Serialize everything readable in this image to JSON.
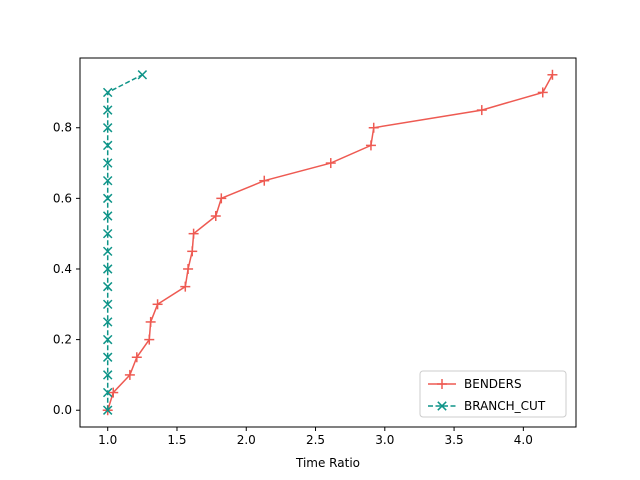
{
  "chart_data": {
    "type": "line",
    "title": "",
    "xlabel": "Time Ratio",
    "ylabel": "",
    "xlim": [
      0.8,
      4.38
    ],
    "ylim": [
      -0.0475,
      0.9975
    ],
    "x_ticks": [
      1.0,
      1.5,
      2.0,
      2.5,
      3.0,
      3.5,
      4.0
    ],
    "x_tick_labels": [
      "1.0",
      "1.5",
      "2.0",
      "2.5",
      "3.0",
      "3.5",
      "4.0"
    ],
    "y_ticks": [
      0.0,
      0.2,
      0.4,
      0.6,
      0.8
    ],
    "y_tick_labels": [
      "0.0",
      "0.2",
      "0.4",
      "0.6",
      "0.8"
    ],
    "grid": false,
    "legend": "lower-right",
    "series": [
      {
        "name": "BENDERS",
        "color": "#ee5a52",
        "marker": "plus",
        "linestyle": "solid",
        "x": [
          1.0,
          1.04,
          1.16,
          1.21,
          1.3,
          1.31,
          1.36,
          1.56,
          1.58,
          1.61,
          1.62,
          1.78,
          1.82,
          2.13,
          2.61,
          2.9,
          2.92,
          3.7,
          4.14,
          4.21
        ],
        "y": [
          0.0,
          0.05,
          0.1,
          0.15,
          0.2,
          0.25,
          0.3,
          0.35,
          0.4,
          0.45,
          0.5,
          0.55,
          0.6,
          0.65,
          0.7,
          0.75,
          0.8,
          0.85,
          0.9,
          0.95
        ]
      },
      {
        "name": "BRANCH_CUT",
        "color": "#0e9488",
        "marker": "x",
        "linestyle": "dashed",
        "x": [
          1.0,
          1.0,
          1.0,
          1.0,
          1.0,
          1.0,
          1.0,
          1.0,
          1.0,
          1.0,
          1.0,
          1.0,
          1.0,
          1.0,
          1.0,
          1.0,
          1.0,
          1.0,
          1.0,
          1.25
        ],
        "y": [
          0.0,
          0.05,
          0.1,
          0.15,
          0.2,
          0.25,
          0.3,
          0.35,
          0.4,
          0.45,
          0.5,
          0.55,
          0.6,
          0.65,
          0.7,
          0.75,
          0.8,
          0.85,
          0.9,
          0.95
        ]
      }
    ]
  }
}
